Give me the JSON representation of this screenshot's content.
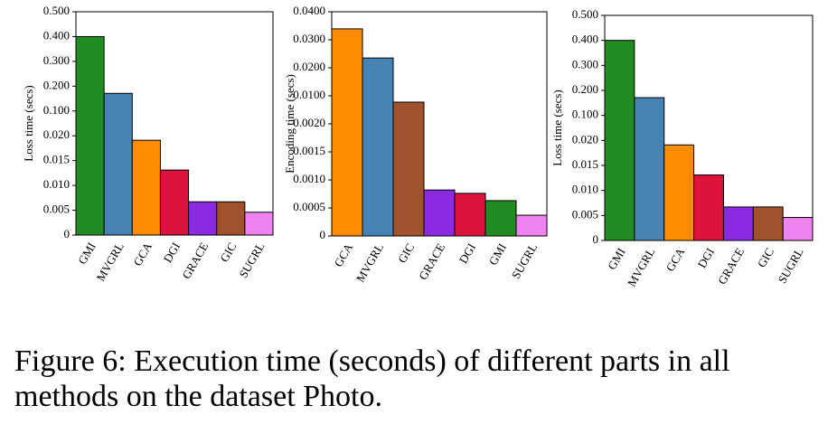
{
  "chart_data": [
    {
      "type": "bar",
      "ylabel": "Loss time (secs)",
      "yscale": "segmented",
      "categories": [
        "GMI",
        "MVGRL",
        "GCA",
        "DGI",
        "GRACE",
        "GIC",
        "SUGRL"
      ],
      "values": [
        0.4,
        0.171,
        0.0191,
        0.0131,
        0.0067,
        0.0067,
        0.0046
      ],
      "colors": [
        "#228b22",
        "#4682b4",
        "#ff8c00",
        "#dc143c",
        "#8a2be2",
        "#a0522d",
        "#ee82ee"
      ],
      "ylim": [
        0,
        0.5
      ],
      "yticks": [
        0,
        {
          "value": 0.005,
          "label": "0.005"
        },
        {
          "value": 0.01,
          "label": "0.010"
        },
        {
          "value": 0.015,
          "label": "0.015"
        },
        {
          "value": 0.02,
          "label": "0.020"
        },
        {
          "value": 0.1,
          "label": "0.100"
        },
        {
          "value": 0.2,
          "label": "0.200"
        },
        {
          "value": 0.3,
          "label": "0.300"
        },
        {
          "value": 0.4,
          "label": "0.400"
        },
        {
          "value": 0.5,
          "label": "0.500"
        }
      ]
    },
    {
      "type": "bar",
      "ylabel": "Encoding time (secs)",
      "yscale": "segmented",
      "categories": [
        "GCA",
        "MVGRL",
        "GIC",
        "GRACE",
        "DGI",
        "GMI",
        "SUGRL"
      ],
      "values": [
        0.0339,
        0.0235,
        0.0082,
        0.00082,
        0.00076,
        0.00063,
        0.00037
      ],
      "colors": [
        "#ff8c00",
        "#4682b4",
        "#a0522d",
        "#8a2be2",
        "#dc143c",
        "#228b22",
        "#ee82ee"
      ],
      "ylim": [
        0,
        0.04
      ],
      "yticks": [
        0,
        {
          "value": 0.0005,
          "label": "0.0005"
        },
        {
          "value": 0.001,
          "label": "0.0010"
        },
        {
          "value": 0.0015,
          "label": "0.0015"
        },
        {
          "value": 0.002,
          "label": "0.0020"
        },
        {
          "value": 0.01,
          "label": "0.0100"
        },
        {
          "value": 0.02,
          "label": "0.0200"
        },
        {
          "value": 0.03,
          "label": "0.0300"
        },
        {
          "value": 0.04,
          "label": "0.0400"
        }
      ]
    },
    {
      "type": "bar",
      "ylabel": "Loss time (secs)",
      "yscale": "segmented",
      "categories": [
        "GMI",
        "MVGRL",
        "GCA",
        "DGI",
        "GRACE",
        "GIC",
        "SUGRL"
      ],
      "values": [
        0.4,
        0.171,
        0.0191,
        0.0131,
        0.0067,
        0.0067,
        0.0046
      ],
      "colors": [
        "#228b22",
        "#4682b4",
        "#ff8c00",
        "#dc143c",
        "#8a2be2",
        "#a0522d",
        "#ee82ee"
      ],
      "ylim": [
        0,
        0.5
      ],
      "yticks": [
        0,
        {
          "value": 0.005,
          "label": "0.005"
        },
        {
          "value": 0.01,
          "label": "0.010"
        },
        {
          "value": 0.015,
          "label": "0.015"
        },
        {
          "value": 0.02,
          "label": "0.020"
        },
        {
          "value": 0.1,
          "label": "0.100"
        },
        {
          "value": 0.2,
          "label": "0.200"
        },
        {
          "value": 0.3,
          "label": "0.300"
        },
        {
          "value": 0.4,
          "label": "0.400"
        },
        {
          "value": 0.5,
          "label": "0.500"
        }
      ]
    }
  ],
  "caption": "Figure 6: Execution time (seconds) of different parts in all methods on the dataset Photo."
}
